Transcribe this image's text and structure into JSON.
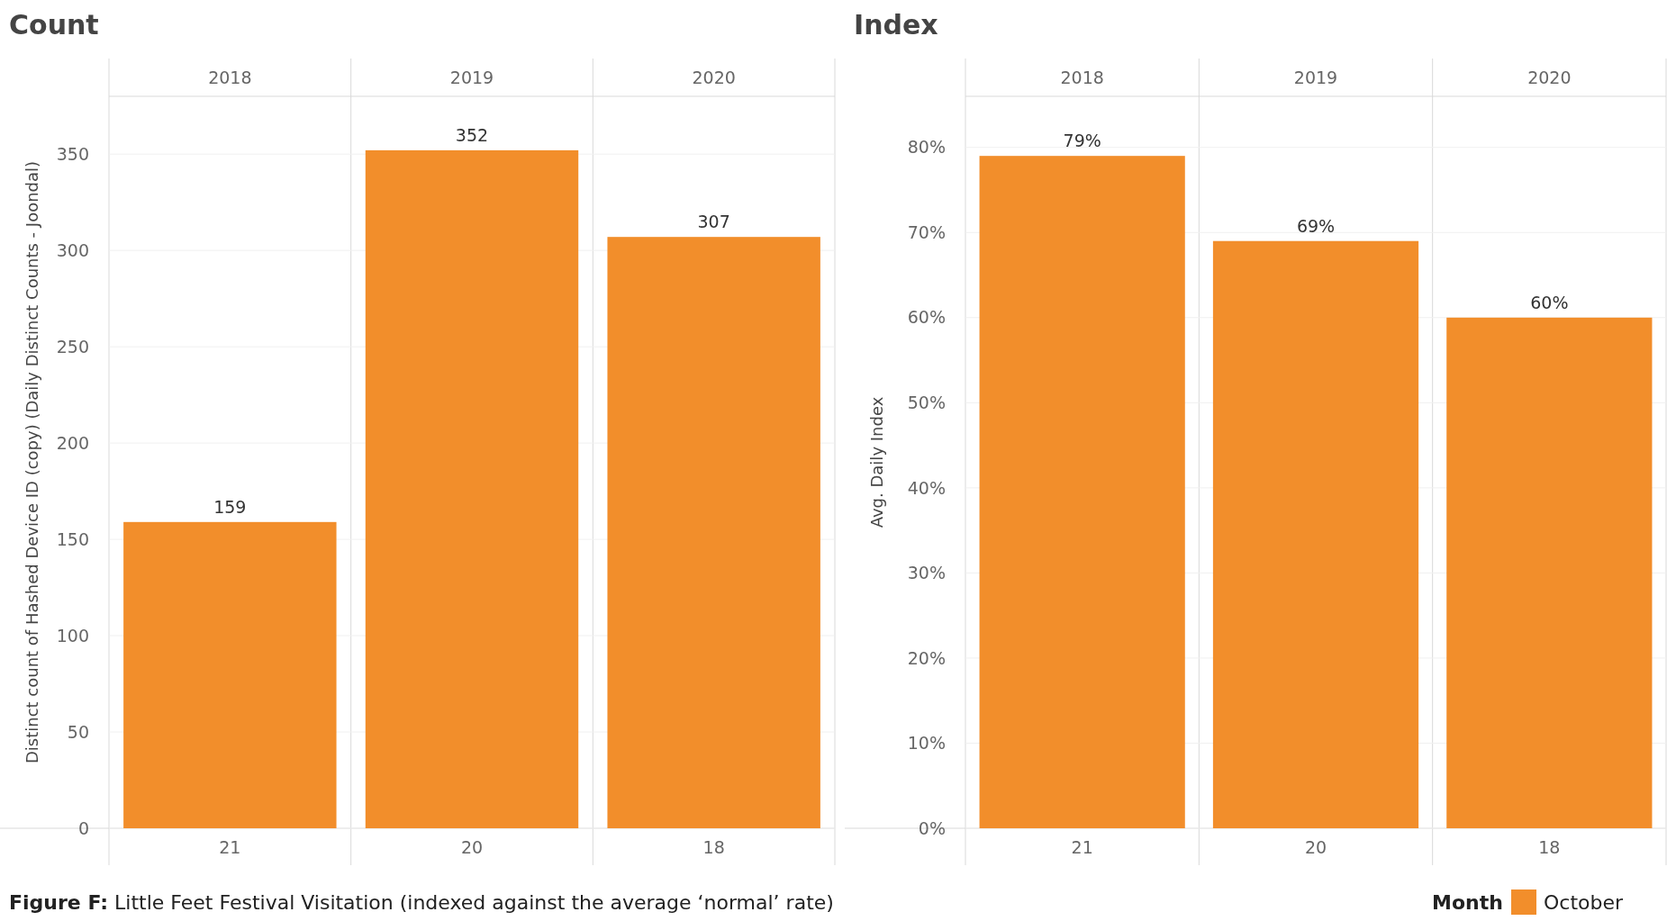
{
  "chart_data": [
    {
      "type": "bar",
      "title": "Count",
      "ylabel": "Distinct count of Hashed Device ID (copy) (Daily Distinct Counts - Joondal)",
      "categories": [
        "2018",
        "2019",
        "2020"
      ],
      "series": [
        {
          "color": "#f28e2b",
          "values": [
            159,
            352,
            307
          ]
        }
      ],
      "ylim": [
        0,
        380
      ],
      "yticks": [
        0,
        50,
        100,
        150,
        200,
        250,
        300,
        350
      ],
      "grid": "y",
      "data_labels": true,
      "legend": false,
      "annotations": [
        "21",
        "20",
        "18",
        "Figure F:  Little Feet Festival Visitation (indexed against the average ‘normal’ rate)"
      ]
    },
    {
      "type": "bar",
      "title": "Index",
      "ylabel": "Avg. Daily Index",
      "categories": [
        "2018",
        "2019",
        "2020"
      ],
      "series": [
        {
          "name": "October",
          "color": "#f28e2b",
          "values": [
            79,
            69,
            60
          ],
          "value_labels": [
            "79%",
            "69%",
            "60%"
          ]
        }
      ],
      "ylim": [
        0,
        86
      ],
      "yticks": [
        {
          "value": 0,
          "label": "0%"
        },
        {
          "value": 10,
          "label": "10%"
        },
        {
          "value": 20,
          "label": "20%"
        },
        {
          "value": 30,
          "label": "30%"
        },
        {
          "value": 40,
          "label": "40%"
        },
        {
          "value": 50,
          "label": "50%"
        },
        {
          "value": 60,
          "label": "60%"
        },
        {
          "value": 70,
          "label": "70%"
        },
        {
          "value": 80,
          "label": "80%"
        }
      ],
      "grid": "y",
      "legend": "bottom right",
      "legend_title": "Month",
      "annotations": [
        "21",
        "20",
        "18"
      ]
    }
  ]
}
